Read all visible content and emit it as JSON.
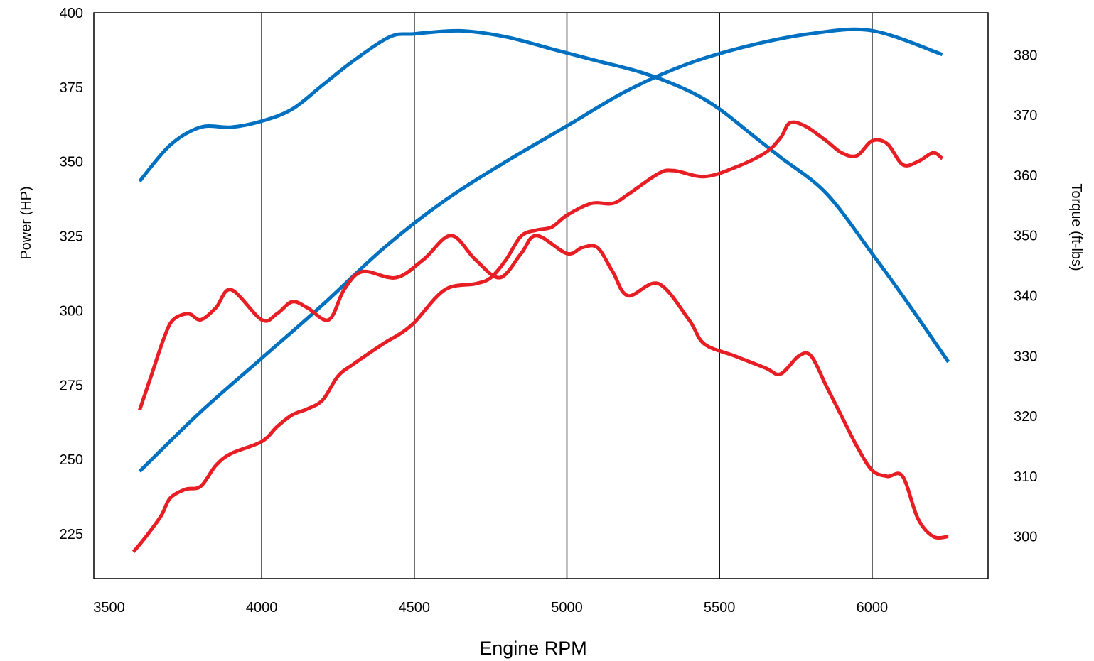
{
  "chart_data": {
    "type": "line",
    "xlabel": "Engine RPM",
    "ylabel_left": "Power (HP)",
    "ylabel_right": "Torque (ft-lbs)",
    "xlim": [
      3450,
      6380
    ],
    "ylim_left": [
      210,
      400
    ],
    "ylim_right": [
      293,
      387
    ],
    "x_ticks": [
      "3500",
      "4000",
      "4500",
      "5000",
      "5500",
      "6000"
    ],
    "y_left_ticks": [
      "225",
      "250",
      "275",
      "300",
      "325",
      "350",
      "375",
      "400"
    ],
    "y_right_ticks": [
      "300",
      "310",
      "320",
      "330",
      "340",
      "350",
      "360",
      "370",
      "380"
    ],
    "vertical_gridlines": [
      4000,
      4500,
      5000,
      5500,
      6000
    ],
    "series": [
      {
        "color": "#0070C0",
        "axis": "left",
        "x": [
          3600,
          3800,
          4000,
          4200,
          4400,
          4600,
          4800,
          5000,
          5200,
          5400,
          5600,
          5800,
          6000,
          6230
        ],
        "y": [
          246,
          266,
          284,
          302,
          321,
          337,
          350,
          362,
          374,
          383,
          389,
          393,
          394,
          386
        ]
      },
      {
        "color": "#0070C0",
        "axis": "right",
        "x": [
          3600,
          3700,
          3800,
          3900,
          4000,
          4100,
          4200,
          4300,
          4420,
          4500,
          4650,
          4800,
          4950,
          5100,
          5250,
          5400,
          5500,
          5600,
          5700,
          5850,
          6000,
          6100,
          6250
        ],
        "y": [
          359,
          365,
          368,
          368,
          369,
          371,
          375,
          379,
          383,
          383.5,
          384,
          383,
          381,
          379,
          377,
          374,
          371,
          367,
          363,
          357,
          347,
          340,
          329
        ]
      },
      {
        "color": "#E81E25",
        "axis": "left",
        "x": [
          3580,
          3620,
          3670,
          3700,
          3750,
          3800,
          3850,
          3900,
          4000,
          4050,
          4100,
          4150,
          4200,
          4250,
          4300,
          4400,
          4450,
          4500,
          4600,
          4700,
          4750,
          4800,
          4850,
          4900,
          4950,
          5000,
          5080,
          5150,
          5200,
          5300,
          5350,
          5450,
          5550,
          5650,
          5700,
          5730,
          5780,
          5850,
          5900,
          5950,
          6000,
          6050,
          6100,
          6150,
          6200,
          6230
        ],
        "y": [
          219,
          224,
          231,
          237,
          240,
          241,
          248,
          252,
          256,
          261,
          265,
          267,
          270,
          278,
          282,
          289,
          292,
          296,
          307,
          309,
          311,
          317,
          325,
          327,
          328,
          332,
          336,
          336,
          339,
          346,
          347,
          345,
          348,
          353,
          358,
          363,
          362,
          357,
          353,
          352,
          357,
          356,
          349,
          350,
          353,
          351
        ]
      },
      {
        "color": "#E81E25",
        "axis": "right",
        "x": [
          3600,
          3640,
          3680,
          3710,
          3760,
          3800,
          3850,
          3900,
          4000,
          4050,
          4100,
          4150,
          4220,
          4270,
          4330,
          4440,
          4530,
          4620,
          4700,
          4780,
          4850,
          4900,
          5000,
          5050,
          5100,
          5150,
          5200,
          5300,
          5400,
          5450,
          5550,
          5650,
          5700,
          5760,
          5800,
          5850,
          5900,
          5950,
          6000,
          6050,
          6100,
          6150,
          6200,
          6250
        ],
        "y": [
          321,
          327,
          333,
          336,
          337,
          336,
          338,
          341,
          336,
          337,
          339,
          338,
          336,
          341,
          344,
          343,
          346,
          350,
          346,
          343,
          347,
          350,
          347,
          348,
          348,
          344,
          340,
          342,
          336,
          332,
          330,
          328,
          327,
          330,
          330,
          325,
          320,
          315,
          311,
          310,
          310,
          303,
          300,
          300
        ]
      }
    ]
  }
}
